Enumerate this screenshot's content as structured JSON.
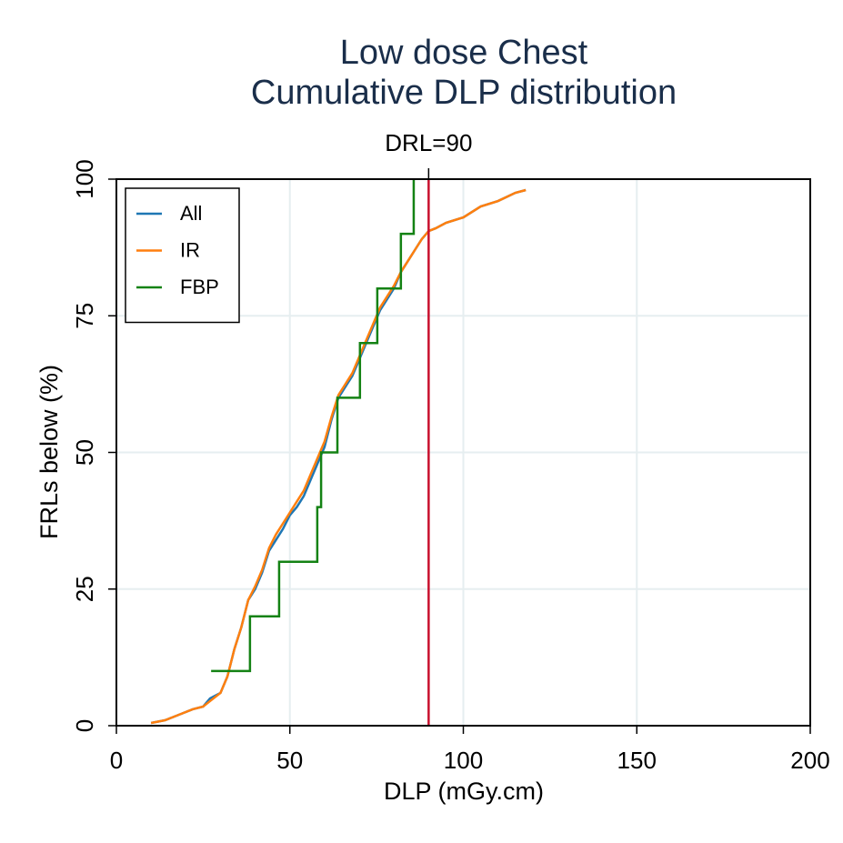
{
  "chart_data": {
    "type": "line",
    "title": [
      "Low dose Chest",
      "Cumulative DLP distribution"
    ],
    "x_label": "DLP (mGy.cm)",
    "y_label": "FRLs below (%)",
    "xlim": [
      0,
      200
    ],
    "ylim": [
      0,
      100
    ],
    "xticks": [
      0,
      50,
      100,
      150,
      200
    ],
    "yticks": [
      0,
      25,
      50,
      75,
      100
    ],
    "grid": true,
    "legend": "top-left",
    "reference_line": {
      "value": 90,
      "label": "DRL=90",
      "color": "#c8102e"
    },
    "series": [
      {
        "name": "All",
        "color": "#1f77b4",
        "step": false,
        "x": [
          10,
          14,
          18,
          22,
          25,
          27,
          30,
          32,
          34,
          36,
          38,
          40,
          42,
          44,
          46,
          48,
          50,
          52,
          54,
          56,
          58,
          60,
          62,
          64,
          66,
          68,
          70,
          72,
          74,
          76,
          78,
          80,
          82,
          84,
          86,
          88,
          90,
          92,
          95,
          100,
          105,
          110,
          115,
          118
        ],
        "values": [
          0.5,
          1,
          2,
          3,
          3.5,
          5,
          6,
          9,
          14,
          18,
          23,
          25,
          28,
          32,
          34,
          36,
          38.5,
          40,
          42,
          45,
          48,
          51,
          56,
          60,
          62,
          64,
          67,
          70,
          73,
          76,
          78,
          80,
          83,
          85,
          87,
          89,
          90.5,
          91,
          92,
          93,
          95,
          96,
          97.5,
          98
        ]
      },
      {
        "name": "IR",
        "color": "#ff7f0e",
        "step": false,
        "x": [
          10,
          14,
          18,
          22,
          25,
          27,
          30,
          32,
          34,
          36,
          38,
          40,
          42,
          44,
          46,
          48,
          50,
          52,
          54,
          56,
          58,
          60,
          62,
          64,
          66,
          68,
          70,
          72,
          74,
          76,
          78,
          80,
          82,
          84,
          86,
          88,
          90,
          92,
          95,
          100,
          105,
          110,
          115,
          118
        ],
        "values": [
          0.5,
          1,
          2,
          3,
          3.5,
          4.5,
          6,
          9,
          14,
          18,
          23,
          25.5,
          28.5,
          32.5,
          35,
          37,
          39,
          41,
          43,
          46,
          49,
          52,
          56.5,
          60.5,
          62.5,
          64.5,
          67.5,
          70.5,
          73.5,
          76.5,
          78.5,
          80.5,
          83,
          85,
          87,
          89,
          90.5,
          91,
          92,
          93,
          95,
          96,
          97.5,
          98
        ]
      },
      {
        "name": "FBP",
        "color": "#148214",
        "step": true,
        "x": [
          27.3,
          38.5,
          46.9,
          57.9,
          59.0,
          63.7,
          70.2,
          75.2,
          82.0,
          85.7
        ],
        "values": [
          10,
          20,
          30,
          40,
          50,
          60,
          70,
          80,
          90,
          100
        ]
      }
    ]
  }
}
